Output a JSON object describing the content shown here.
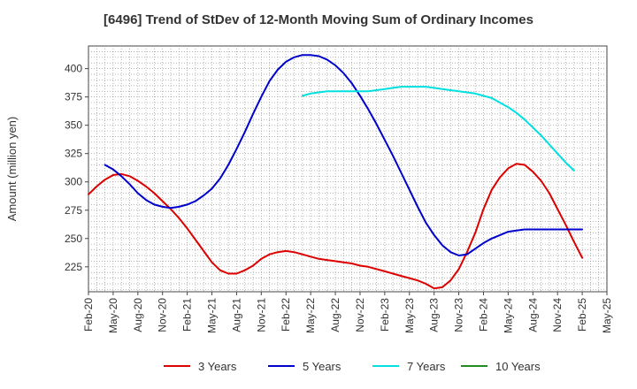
{
  "chart_data": {
    "type": "line",
    "title": "[6496]  Trend of StDev of 12-Month Moving Sum of Ordinary Incomes",
    "ylabel": "Amount (million yen)",
    "xlabel": "",
    "ylim": [
      203,
      420
    ],
    "yticks": [
      225,
      250,
      275,
      300,
      325,
      350,
      375,
      400
    ],
    "xlim": [
      "2020-02",
      "2025-05"
    ],
    "xticks": [
      "Feb-20",
      "May-20",
      "Aug-20",
      "Nov-20",
      "Feb-21",
      "May-21",
      "Aug-21",
      "Nov-21",
      "Feb-22",
      "May-22",
      "Aug-22",
      "Nov-22",
      "Feb-23",
      "May-23",
      "Aug-23",
      "Nov-23",
      "Feb-24",
      "May-24",
      "Aug-24",
      "Nov-24",
      "Feb-25",
      "May-25"
    ],
    "grid": true,
    "legend_position": "bottom",
    "series": [
      {
        "name": "3 Years",
        "color": "#dd0000",
        "points": [
          [
            "2020-02",
            289
          ],
          [
            "2020-03",
            296
          ],
          [
            "2020-04",
            302
          ],
          [
            "2020-05",
            306
          ],
          [
            "2020-06",
            307
          ],
          [
            "2020-07",
            305
          ],
          [
            "2020-08",
            301
          ],
          [
            "2020-09",
            296
          ],
          [
            "2020-10",
            290
          ],
          [
            "2020-11",
            283
          ],
          [
            "2020-12",
            276
          ],
          [
            "2021-01",
            268
          ],
          [
            "2021-02",
            259
          ],
          [
            "2021-03",
            249
          ],
          [
            "2021-04",
            239
          ],
          [
            "2021-05",
            229
          ],
          [
            "2021-06",
            222
          ],
          [
            "2021-07",
            219
          ],
          [
            "2021-08",
            219
          ],
          [
            "2021-09",
            222
          ],
          [
            "2021-10",
            226
          ],
          [
            "2021-11",
            232
          ],
          [
            "2021-12",
            236
          ],
          [
            "2022-01",
            238
          ],
          [
            "2022-02",
            239
          ],
          [
            "2022-03",
            238
          ],
          [
            "2022-04",
            236
          ],
          [
            "2022-05",
            234
          ],
          [
            "2022-06",
            232
          ],
          [
            "2022-07",
            231
          ],
          [
            "2022-08",
            230
          ],
          [
            "2022-09",
            229
          ],
          [
            "2022-10",
            228
          ],
          [
            "2022-11",
            226
          ],
          [
            "2022-12",
            225
          ],
          [
            "2023-01",
            223
          ],
          [
            "2023-02",
            221
          ],
          [
            "2023-03",
            219
          ],
          [
            "2023-04",
            217
          ],
          [
            "2023-05",
            215
          ],
          [
            "2023-06",
            213
          ],
          [
            "2023-07",
            210
          ],
          [
            "2023-08",
            206
          ],
          [
            "2023-09",
            207
          ],
          [
            "2023-10",
            213
          ],
          [
            "2023-11",
            223
          ],
          [
            "2023-12",
            238
          ],
          [
            "2024-01",
            255
          ],
          [
            "2024-02",
            276
          ],
          [
            "2024-03",
            293
          ],
          [
            "2024-04",
            304
          ],
          [
            "2024-05",
            312
          ],
          [
            "2024-06",
            316
          ],
          [
            "2024-07",
            315
          ],
          [
            "2024-08",
            309
          ],
          [
            "2024-09",
            301
          ],
          [
            "2024-10",
            290
          ],
          [
            "2024-11",
            276
          ],
          [
            "2024-12",
            262
          ],
          [
            "2025-01",
            247
          ],
          [
            "2025-02",
            233
          ]
        ]
      },
      {
        "name": "5 Years",
        "color": "#0000cc",
        "points": [
          [
            "2020-04",
            315
          ],
          [
            "2020-05",
            311
          ],
          [
            "2020-06",
            305
          ],
          [
            "2020-07",
            298
          ],
          [
            "2020-08",
            290
          ],
          [
            "2020-09",
            284
          ],
          [
            "2020-10",
            280
          ],
          [
            "2020-11",
            278
          ],
          [
            "2020-12",
            277
          ],
          [
            "2021-01",
            278
          ],
          [
            "2021-02",
            280
          ],
          [
            "2021-03",
            283
          ],
          [
            "2021-04",
            288
          ],
          [
            "2021-05",
            294
          ],
          [
            "2021-06",
            303
          ],
          [
            "2021-07",
            315
          ],
          [
            "2021-08",
            329
          ],
          [
            "2021-09",
            344
          ],
          [
            "2021-10",
            360
          ],
          [
            "2021-11",
            375
          ],
          [
            "2021-12",
            389
          ],
          [
            "2022-01",
            399
          ],
          [
            "2022-02",
            406
          ],
          [
            "2022-03",
            410
          ],
          [
            "2022-04",
            412
          ],
          [
            "2022-05",
            412
          ],
          [
            "2022-06",
            411
          ],
          [
            "2022-07",
            408
          ],
          [
            "2022-08",
            403
          ],
          [
            "2022-09",
            396
          ],
          [
            "2022-10",
            387
          ],
          [
            "2022-11",
            376
          ],
          [
            "2022-12",
            364
          ],
          [
            "2023-01",
            351
          ],
          [
            "2023-02",
            337
          ],
          [
            "2023-03",
            323
          ],
          [
            "2023-04",
            308
          ],
          [
            "2023-05",
            293
          ],
          [
            "2023-06",
            278
          ],
          [
            "2023-07",
            264
          ],
          [
            "2023-08",
            253
          ],
          [
            "2023-09",
            244
          ],
          [
            "2023-10",
            238
          ],
          [
            "2023-11",
            235
          ],
          [
            "2023-12",
            236
          ],
          [
            "2024-01",
            241
          ],
          [
            "2024-02",
            246
          ],
          [
            "2024-03",
            250
          ],
          [
            "2024-04",
            253
          ],
          [
            "2024-05",
            256
          ],
          [
            "2024-06",
            257
          ],
          [
            "2024-07",
            258
          ],
          [
            "2024-08",
            258
          ],
          [
            "2024-09",
            258
          ],
          [
            "2024-10",
            258
          ],
          [
            "2024-11",
            258
          ],
          [
            "2024-12",
            258
          ],
          [
            "2025-01",
            258
          ],
          [
            "2025-02",
            258
          ]
        ]
      },
      {
        "name": "7 Years",
        "color": "#00e0e0",
        "points": [
          [
            "2022-04",
            376
          ],
          [
            "2022-05",
            378
          ],
          [
            "2022-06",
            379
          ],
          [
            "2022-07",
            380
          ],
          [
            "2022-08",
            380
          ],
          [
            "2022-09",
            380
          ],
          [
            "2022-10",
            380
          ],
          [
            "2022-11",
            380
          ],
          [
            "2022-12",
            380
          ],
          [
            "2023-01",
            381
          ],
          [
            "2023-02",
            382
          ],
          [
            "2023-03",
            383
          ],
          [
            "2023-04",
            384
          ],
          [
            "2023-05",
            384
          ],
          [
            "2023-06",
            384
          ],
          [
            "2023-07",
            384
          ],
          [
            "2023-08",
            383
          ],
          [
            "2023-09",
            382
          ],
          [
            "2023-10",
            381
          ],
          [
            "2023-11",
            380
          ],
          [
            "2023-12",
            379
          ],
          [
            "2024-01",
            378
          ],
          [
            "2024-02",
            376
          ],
          [
            "2024-03",
            374
          ],
          [
            "2024-04",
            370
          ],
          [
            "2024-05",
            366
          ],
          [
            "2024-06",
            361
          ],
          [
            "2024-07",
            355
          ],
          [
            "2024-08",
            348
          ],
          [
            "2024-09",
            341
          ],
          [
            "2024-10",
            333
          ],
          [
            "2024-11",
            325
          ],
          [
            "2024-12",
            317
          ],
          [
            "2025-01",
            310
          ]
        ]
      },
      {
        "name": "10 Years",
        "color": "#228b22",
        "points": []
      }
    ]
  }
}
